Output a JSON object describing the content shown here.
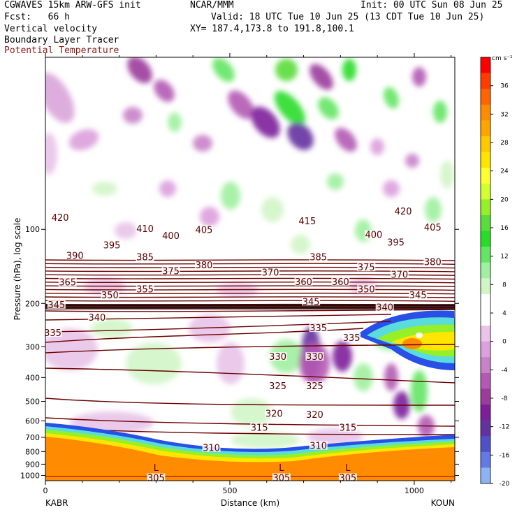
{
  "header": {
    "model": "CGWAVES 15km ARW-GFS init",
    "org": "NCAR/MMM",
    "init": "Init: 00 UTC Sun 08 Jun 25",
    "fcst": "Fcst:   66 h",
    "valid": "Valid: 18 UTC Tue 10 Jun 25 (13 CDT Tue 10 Jun 25)",
    "xy": "XY= 187.4,173.8 to 191.8,100.1",
    "field1": "Vertical velocity",
    "field2": "Boundary Layer Tracer",
    "field3": "Potential Temperature"
  },
  "colors": {
    "theta": "#6b0000",
    "field3_label": "#8b1a1a",
    "terrain": "#ff8c00"
  },
  "chart_data": {
    "type": "heatmap",
    "xlabel": "Distance (km)",
    "ylabel": "Pressure (hPa), log scale",
    "x_ticks": [
      "0",
      "500",
      "1000"
    ],
    "x_tick_values": [
      0,
      500,
      1000
    ],
    "xlim": [
      0,
      1110
    ],
    "y_ticks": [
      "100",
      "200",
      "300",
      "400",
      "500",
      "600",
      "700",
      "800",
      "900",
      "1000"
    ],
    "y_tick_values": [
      100,
      200,
      300,
      400,
      500,
      600,
      700,
      800,
      900,
      1000
    ],
    "ylim": [
      1050,
      20
    ],
    "y_scale": "log",
    "left_endpoint": "KABR",
    "right_endpoint": "KOUN",
    "colorbar": {
      "unit": "cm s⁻¹",
      "labels": [
        "36",
        "32",
        "28",
        "24",
        "20",
        "16",
        "12",
        "8",
        "4",
        "0",
        "-4",
        "-8",
        "-12",
        "-16",
        "-20"
      ],
      "label_values": [
        36,
        32,
        28,
        24,
        20,
        16,
        12,
        8,
        4,
        0,
        -4,
        -8,
        -12,
        -16,
        -20
      ],
      "colors": [
        "#ff0000",
        "#ff3c00",
        "#ff6400",
        "#ff8c00",
        "#ffa500",
        "#ffc800",
        "#ffe600",
        "#ffff32",
        "#d2ff32",
        "#96f028",
        "#5adc3c",
        "#28dc28",
        "#64e664",
        "#a0f0a0",
        "#d2f5c8",
        "#ffffff",
        "#ffffff",
        "#ebc3eb",
        "#dca0dc",
        "#c882c8",
        "#b45ab4",
        "#9b3c9b",
        "#7d1e9b",
        "#6432a0",
        "#5050c8",
        "#6478e6",
        "#8cb4f5"
      ]
    },
    "theta_labels": [
      {
        "text": "420",
        "x": 40,
        "p": 91
      },
      {
        "text": "410",
        "x": 270,
        "p": 101
      },
      {
        "text": "400",
        "x": 340,
        "p": 108
      },
      {
        "text": "405",
        "x": 430,
        "p": 102
      },
      {
        "text": "415",
        "x": 710,
        "p": 94
      },
      {
        "text": "420",
        "x": 970,
        "p": 86
      },
      {
        "text": "405",
        "x": 1050,
        "p": 100
      },
      {
        "text": "400",
        "x": 890,
        "p": 107
      },
      {
        "text": "395",
        "x": 950,
        "p": 115
      },
      {
        "text": "390",
        "x": 80,
        "p": 130
      },
      {
        "text": "395",
        "x": 180,
        "p": 118
      },
      {
        "text": "385",
        "x": 270,
        "p": 132
      },
      {
        "text": "385",
        "x": 740,
        "p": 132
      },
      {
        "text": "380",
        "x": 430,
        "p": 142
      },
      {
        "text": "380",
        "x": 1050,
        "p": 138
      },
      {
        "text": "375",
        "x": 340,
        "p": 150
      },
      {
        "text": "375",
        "x": 870,
        "p": 145
      },
      {
        "text": "370",
        "x": 610,
        "p": 152
      },
      {
        "text": "370",
        "x": 960,
        "p": 155
      },
      {
        "text": "365",
        "x": 60,
        "p": 167
      },
      {
        "text": "355",
        "x": 270,
        "p": 178
      },
      {
        "text": "350",
        "x": 175,
        "p": 188
      },
      {
        "text": "360",
        "x": 700,
        "p": 166
      },
      {
        "text": "360",
        "x": 800,
        "p": 166
      },
      {
        "text": "350",
        "x": 870,
        "p": 178
      },
      {
        "text": "345",
        "x": 1010,
        "p": 188
      },
      {
        "text": "345",
        "x": 720,
        "p": 200
      },
      {
        "text": "345",
        "x": 30,
        "p": 206
      },
      {
        "text": "340",
        "x": 140,
        "p": 232
      },
      {
        "text": "340",
        "x": 920,
        "p": 211
      },
      {
        "text": "335",
        "x": 20,
        "p": 268
      },
      {
        "text": "335",
        "x": 740,
        "p": 256
      },
      {
        "text": "335",
        "x": 830,
        "p": 280
      },
      {
        "text": "330",
        "x": 630,
        "p": 335
      },
      {
        "text": "330",
        "x": 730,
        "p": 335
      },
      {
        "text": "325",
        "x": 630,
        "p": 440
      },
      {
        "text": "325",
        "x": 730,
        "p": 440
      },
      {
        "text": "320",
        "x": 620,
        "p": 570
      },
      {
        "text": "320",
        "x": 730,
        "p": 575
      },
      {
        "text": "315",
        "x": 580,
        "p": 650
      },
      {
        "text": "315",
        "x": 820,
        "p": 650
      },
      {
        "text": "310",
        "x": 450,
        "p": 785
      },
      {
        "text": "310",
        "x": 740,
        "p": 770
      },
      {
        "text": "305",
        "x": 300,
        "p": 1040
      },
      {
        "text": "305",
        "x": 640,
        "p": 1040
      },
      {
        "text": "305",
        "x": 820,
        "p": 1040
      }
    ],
    "low_markers": [
      {
        "text": "L",
        "x": 300
      },
      {
        "text": "L",
        "x": 640
      },
      {
        "text": "L",
        "x": 820
      }
    ]
  }
}
